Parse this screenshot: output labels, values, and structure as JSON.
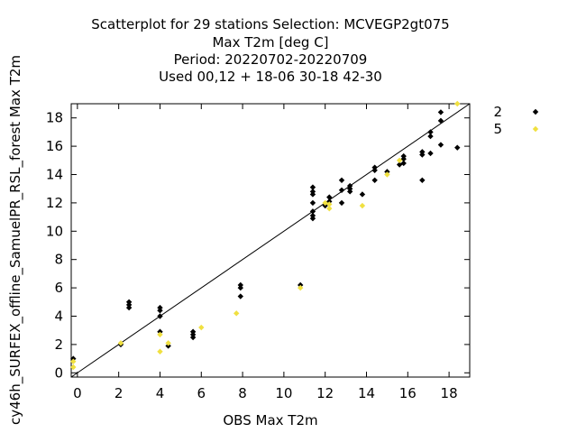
{
  "chart_data": {
    "type": "scatter",
    "title_lines": [
      "Scatterplot for   29 stations Selection: MCVEGP2gt075",
      "Max T2m [deg C]",
      "Period: 20220702-20220709",
      "Used  00,12  + 18-06 30-18 42-30"
    ],
    "xlabel": "OBS Max T2m",
    "ylabel": "cy46h_SURFEX_offline_SamuelPR_RSL_forest Max T2m",
    "xlim": [
      -0.3,
      19.0
    ],
    "ylim": [
      -0.3,
      19.0
    ],
    "x_ticks": [
      0,
      2,
      4,
      6,
      8,
      10,
      12,
      14,
      16,
      18
    ],
    "y_ticks": [
      0,
      2,
      4,
      6,
      8,
      10,
      12,
      14,
      16,
      18
    ],
    "diagonal": true,
    "legend_position": "right",
    "series": [
      {
        "name": "2",
        "color": "#000000",
        "points": [
          [
            -0.2,
            1.0
          ],
          [
            2.1,
            2.0
          ],
          [
            2.5,
            4.6
          ],
          [
            2.5,
            4.8
          ],
          [
            2.5,
            5.0
          ],
          [
            4.0,
            4.0
          ],
          [
            4.0,
            4.4
          ],
          [
            4.0,
            4.6
          ],
          [
            4.0,
            2.9
          ],
          [
            4.4,
            1.9
          ],
          [
            5.6,
            2.5
          ],
          [
            5.6,
            2.7
          ],
          [
            5.6,
            2.9
          ],
          [
            7.9,
            5.4
          ],
          [
            7.9,
            6.0
          ],
          [
            7.9,
            6.2
          ],
          [
            10.8,
            6.2
          ],
          [
            11.4,
            10.9
          ],
          [
            11.4,
            11.1
          ],
          [
            11.4,
            11.4
          ],
          [
            11.4,
            12.0
          ],
          [
            11.4,
            12.6
          ],
          [
            11.4,
            12.8
          ],
          [
            11.4,
            13.1
          ],
          [
            12.0,
            11.8
          ],
          [
            12.2,
            12.1
          ],
          [
            12.2,
            12.4
          ],
          [
            12.8,
            12.0
          ],
          [
            12.8,
            12.9
          ],
          [
            12.8,
            13.6
          ],
          [
            13.2,
            12.8
          ],
          [
            13.2,
            13.0
          ],
          [
            13.2,
            13.2
          ],
          [
            13.8,
            12.6
          ],
          [
            14.4,
            13.6
          ],
          [
            14.4,
            14.3
          ],
          [
            14.4,
            14.5
          ],
          [
            15.0,
            14.2
          ],
          [
            15.6,
            14.7
          ],
          [
            15.8,
            14.8
          ],
          [
            15.8,
            15.1
          ],
          [
            15.8,
            15.3
          ],
          [
            16.7,
            13.6
          ],
          [
            16.7,
            15.4
          ],
          [
            16.7,
            15.6
          ],
          [
            17.1,
            15.5
          ],
          [
            17.1,
            16.7
          ],
          [
            17.1,
            17.0
          ],
          [
            17.6,
            16.1
          ],
          [
            17.6,
            17.8
          ],
          [
            17.6,
            18.4
          ],
          [
            18.4,
            15.9
          ]
        ]
      },
      {
        "name": "5",
        "color": "#f0e040",
        "points": [
          [
            -0.2,
            0.8
          ],
          [
            -0.2,
            0.4
          ],
          [
            2.1,
            2.1
          ],
          [
            4.0,
            1.5
          ],
          [
            4.0,
            2.7
          ],
          [
            4.4,
            2.1
          ],
          [
            6.0,
            3.2
          ],
          [
            7.7,
            4.2
          ],
          [
            10.8,
            6.0
          ],
          [
            12.0,
            12.0
          ],
          [
            12.2,
            11.6
          ],
          [
            12.2,
            11.9
          ],
          [
            13.8,
            11.8
          ],
          [
            15.0,
            14.0
          ],
          [
            15.6,
            15.0
          ],
          [
            18.4,
            19.0
          ]
        ]
      }
    ]
  }
}
